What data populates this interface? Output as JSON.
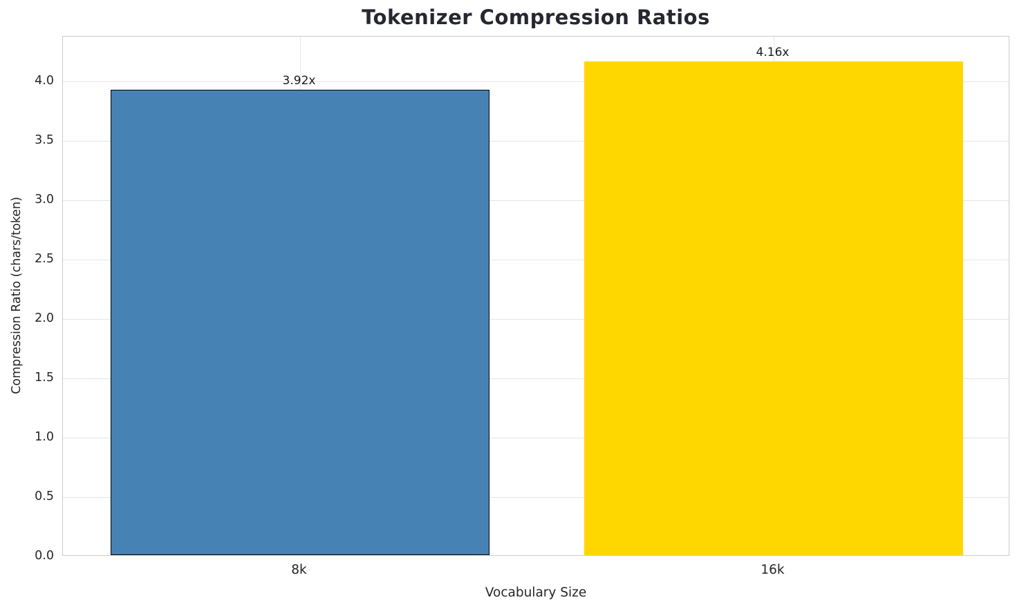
{
  "chart_data": {
    "type": "bar",
    "title": "Tokenizer Compression Ratios",
    "xlabel": "Vocabulary Size",
    "ylabel": "Compression Ratio (chars/token)",
    "categories": [
      "8k",
      "16k"
    ],
    "values": [
      3.92,
      4.16
    ],
    "value_labels": [
      "3.92x",
      "4.16x"
    ],
    "bar_colors": [
      "#4682B4",
      "#FFD700"
    ],
    "bar_edge_colors": [
      "#000000",
      "none"
    ],
    "ylim": [
      0,
      4.38
    ],
    "yticks": [
      0.0,
      0.5,
      1.0,
      1.5,
      2.0,
      2.5,
      3.0,
      3.5,
      4.0
    ],
    "ytick_labels": [
      "0.0",
      "0.5",
      "1.0",
      "1.5",
      "2.0",
      "2.5",
      "3.0",
      "3.5",
      "4.0"
    ],
    "grid": true,
    "legend": "none",
    "bar_width_fraction": 0.8
  }
}
